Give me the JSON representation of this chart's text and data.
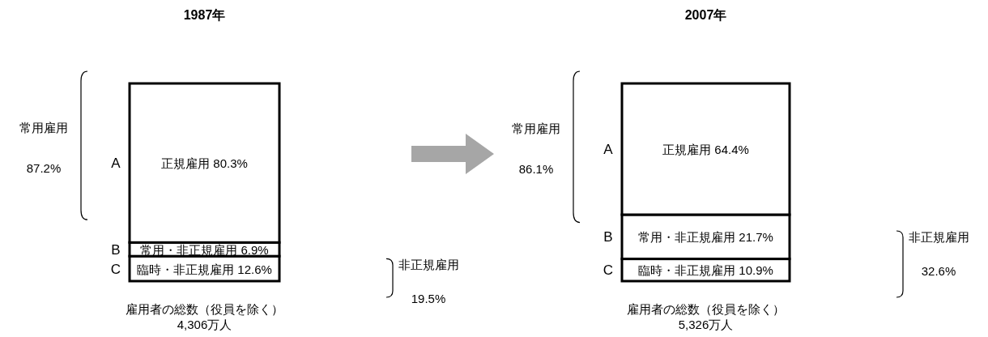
{
  "chart_data": [
    {
      "type": "bar",
      "title": "1987年",
      "xlabel": "雇用者の総数（役員を除く）\n4,306万人",
      "stacked": true,
      "categories": [
        null
      ],
      "series": [
        {
          "name": "C",
          "color": "#ffffff",
          "values": [
            12.6
          ],
          "value_labels": [
            "臨時・非正規雇用  12.6%"
          ]
        },
        {
          "name": "B",
          "color": "#ffffff",
          "values": [
            6.9
          ],
          "value_labels": [
            "常用・非正規雇用  6.9%"
          ]
        },
        {
          "name": "A",
          "color": "#ffffff",
          "values": [
            80.3
          ],
          "value_labels": [
            "正規雇用  80.3%"
          ]
        }
      ],
      "annotations": [
        "常用雇用",
        "87.2%",
        "非正規雇用",
        "19.5%"
      ]
    },
    {
      "type": "bar",
      "title": "2007年",
      "xlabel": "雇用者の総数（役員を除く）\n5,326万人",
      "stacked": true,
      "categories": [
        null
      ],
      "series": [
        {
          "name": "C",
          "color": "#ffffff",
          "values": [
            10.9
          ],
          "value_labels": [
            "臨時・非正規雇用  10.9%"
          ]
        },
        {
          "name": "B",
          "color": "#ffffff",
          "values": [
            21.7
          ],
          "value_labels": [
            "常用・非正規雇用  21.7%"
          ]
        },
        {
          "name": "A",
          "color": "#ffffff",
          "values": [
            64.4
          ],
          "value_labels": [
            "正規雇用  64.4%"
          ]
        }
      ],
      "annotations": [
        "常用雇用",
        "86.1%",
        "非正規雇用",
        "32.6%"
      ]
    }
  ]
}
